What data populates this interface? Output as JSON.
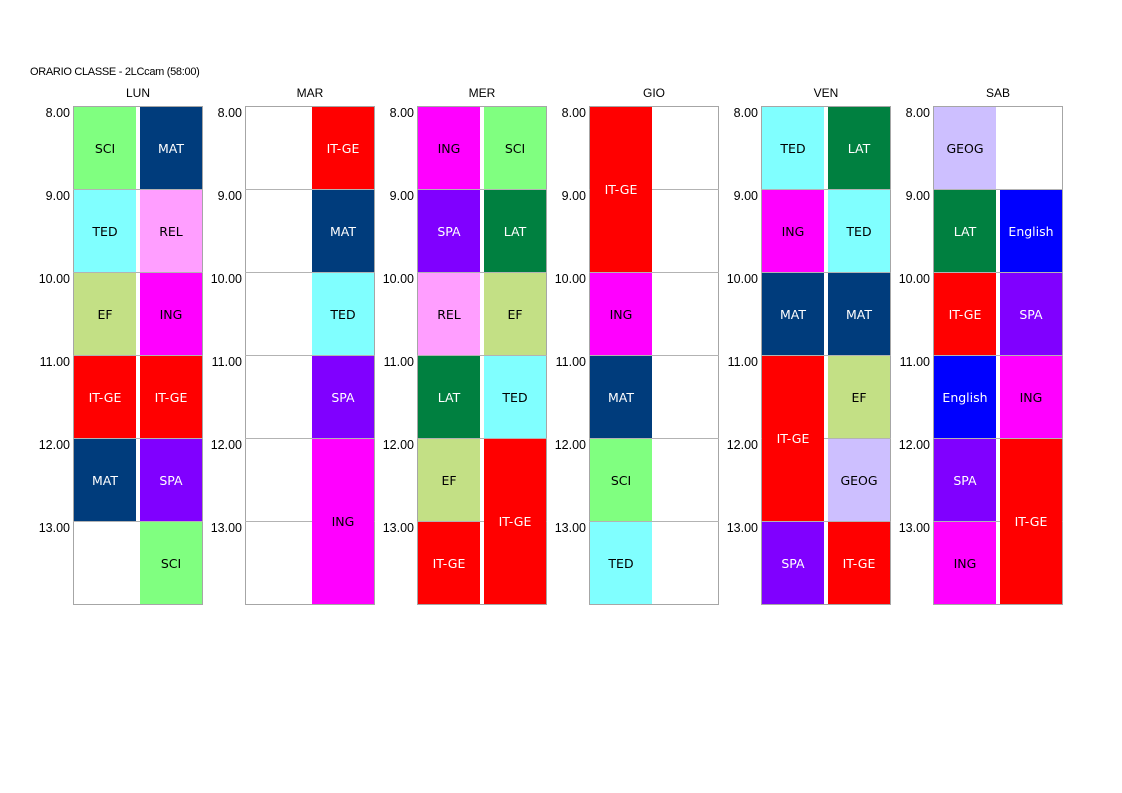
{
  "title": "ORARIO CLASSE  -  2LCcam (58:00)",
  "times": [
    "8.00",
    "9.00",
    "10.00",
    "11.00",
    "12.00",
    "13.00"
  ],
  "subjects": {
    "SCI": {
      "bg": "#80ff80",
      "fg": "#000000"
    },
    "MAT": {
      "bg": "#003c7c",
      "fg": "#ffffff"
    },
    "TED": {
      "bg": "#80ffff",
      "fg": "#000000"
    },
    "REL": {
      "bg": "#ff9eff",
      "fg": "#000000"
    },
    "EF": {
      "bg": "#c3e085",
      "fg": "#000000"
    },
    "ING": {
      "bg": "#ff00ff",
      "fg": "#000000"
    },
    "IT-GE": {
      "bg": "#ff0000",
      "fg": "#ffffff"
    },
    "SPA": {
      "bg": "#8000ff",
      "fg": "#ffffff"
    },
    "LAT": {
      "bg": "#008040",
      "fg": "#ffffff"
    },
    "GEOG": {
      "bg": "#cdbfff",
      "fg": "#000000"
    },
    "English": {
      "bg": "#0000ff",
      "fg": "#ffffff"
    }
  },
  "days": [
    {
      "name": "LUN",
      "lessons": [
        {
          "col": 0,
          "start": 0,
          "span": 1,
          "subject": "SCI"
        },
        {
          "col": 1,
          "start": 0,
          "span": 1,
          "subject": "MAT"
        },
        {
          "col": 0,
          "start": 1,
          "span": 1,
          "subject": "TED"
        },
        {
          "col": 1,
          "start": 1,
          "span": 1,
          "subject": "REL"
        },
        {
          "col": 0,
          "start": 2,
          "span": 1,
          "subject": "EF"
        },
        {
          "col": 1,
          "start": 2,
          "span": 1,
          "subject": "ING"
        },
        {
          "col": 0,
          "start": 3,
          "span": 1,
          "subject": "IT-GE"
        },
        {
          "col": 1,
          "start": 3,
          "span": 1,
          "subject": "IT-GE"
        },
        {
          "col": 0,
          "start": 4,
          "span": 1,
          "subject": "MAT"
        },
        {
          "col": 1,
          "start": 4,
          "span": 1,
          "subject": "SPA"
        },
        {
          "col": 1,
          "start": 5,
          "span": 1,
          "subject": "SCI"
        }
      ]
    },
    {
      "name": "MAR",
      "lessons": [
        {
          "col": 1,
          "start": 0,
          "span": 1,
          "subject": "IT-GE"
        },
        {
          "col": 1,
          "start": 1,
          "span": 1,
          "subject": "MAT"
        },
        {
          "col": 1,
          "start": 2,
          "span": 1,
          "subject": "TED"
        },
        {
          "col": 1,
          "start": 3,
          "span": 1,
          "subject": "SPA"
        },
        {
          "col": 1,
          "start": 4,
          "span": 2,
          "subject": "ING"
        }
      ]
    },
    {
      "name": "MER",
      "lessons": [
        {
          "col": 0,
          "start": 0,
          "span": 1,
          "subject": "ING"
        },
        {
          "col": 1,
          "start": 0,
          "span": 1,
          "subject": "SCI"
        },
        {
          "col": 0,
          "start": 1,
          "span": 1,
          "subject": "SPA"
        },
        {
          "col": 1,
          "start": 1,
          "span": 1,
          "subject": "LAT"
        },
        {
          "col": 0,
          "start": 2,
          "span": 1,
          "subject": "REL"
        },
        {
          "col": 1,
          "start": 2,
          "span": 1,
          "subject": "EF"
        },
        {
          "col": 0,
          "start": 3,
          "span": 1,
          "subject": "LAT"
        },
        {
          "col": 1,
          "start": 3,
          "span": 1,
          "subject": "TED"
        },
        {
          "col": 0,
          "start": 4,
          "span": 1,
          "subject": "EF"
        },
        {
          "col": 1,
          "start": 4,
          "span": 2,
          "subject": "IT-GE"
        },
        {
          "col": 0,
          "start": 5,
          "span": 1,
          "subject": "IT-GE"
        }
      ]
    },
    {
      "name": "GIO",
      "lessons": [
        {
          "col": 0,
          "start": 0,
          "span": 2,
          "subject": "IT-GE"
        },
        {
          "col": 0,
          "start": 2,
          "span": 1,
          "subject": "ING"
        },
        {
          "col": 0,
          "start": 3,
          "span": 1,
          "subject": "MAT"
        },
        {
          "col": 0,
          "start": 4,
          "span": 1,
          "subject": "SCI"
        },
        {
          "col": 0,
          "start": 5,
          "span": 1,
          "subject": "TED"
        }
      ]
    },
    {
      "name": "VEN",
      "lessons": [
        {
          "col": 0,
          "start": 0,
          "span": 1,
          "subject": "TED"
        },
        {
          "col": 1,
          "start": 0,
          "span": 1,
          "subject": "LAT"
        },
        {
          "col": 0,
          "start": 1,
          "span": 1,
          "subject": "ING"
        },
        {
          "col": 1,
          "start": 1,
          "span": 1,
          "subject": "TED"
        },
        {
          "col": 0,
          "start": 2,
          "span": 1,
          "subject": "MAT"
        },
        {
          "col": 1,
          "start": 2,
          "span": 1,
          "subject": "MAT"
        },
        {
          "col": 0,
          "start": 3,
          "span": 2,
          "subject": "IT-GE"
        },
        {
          "col": 1,
          "start": 3,
          "span": 1,
          "subject": "EF"
        },
        {
          "col": 1,
          "start": 4,
          "span": 1,
          "subject": "GEOG"
        },
        {
          "col": 0,
          "start": 5,
          "span": 1,
          "subject": "SPA"
        },
        {
          "col": 1,
          "start": 5,
          "span": 1,
          "subject": "IT-GE"
        }
      ]
    },
    {
      "name": "SAB",
      "lessons": [
        {
          "col": 0,
          "start": 0,
          "span": 1,
          "subject": "GEOG"
        },
        {
          "col": 0,
          "start": 1,
          "span": 1,
          "subject": "LAT"
        },
        {
          "col": 1,
          "start": 1,
          "span": 1,
          "subject": "English"
        },
        {
          "col": 0,
          "start": 2,
          "span": 1,
          "subject": "IT-GE"
        },
        {
          "col": 1,
          "start": 2,
          "span": 1,
          "subject": "SPA"
        },
        {
          "col": 0,
          "start": 3,
          "span": 1,
          "subject": "English"
        },
        {
          "col": 1,
          "start": 3,
          "span": 1,
          "subject": "ING"
        },
        {
          "col": 0,
          "start": 4,
          "span": 1,
          "subject": "SPA"
        },
        {
          "col": 1,
          "start": 4,
          "span": 2,
          "subject": "IT-GE"
        },
        {
          "col": 0,
          "start": 5,
          "span": 1,
          "subject": "ING"
        }
      ]
    }
  ]
}
